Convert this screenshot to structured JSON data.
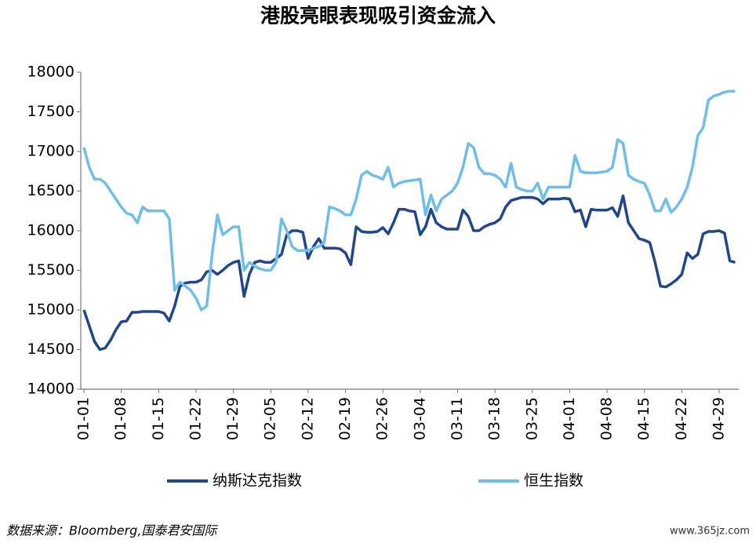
{
  "chart_data": {
    "type": "line",
    "title": "港股亮眼表现吸引资金流入",
    "source": "数据来源：Bloomberg,国泰君安国际",
    "watermark": "www.365jz.com",
    "categories": [
      "01-01",
      null,
      null,
      null,
      null,
      null,
      null,
      "01-08",
      null,
      null,
      null,
      null,
      null,
      null,
      "01-15",
      null,
      null,
      null,
      null,
      null,
      null,
      "01-22",
      null,
      null,
      null,
      null,
      null,
      null,
      "01-29",
      null,
      null,
      null,
      null,
      null,
      null,
      "02-05",
      null,
      null,
      null,
      null,
      null,
      null,
      "02-12",
      null,
      null,
      null,
      null,
      null,
      null,
      "02-19",
      null,
      null,
      null,
      null,
      null,
      null,
      "02-26",
      null,
      null,
      null,
      null,
      null,
      null,
      "03-04",
      null,
      null,
      null,
      null,
      null,
      null,
      "03-11",
      null,
      null,
      null,
      null,
      null,
      null,
      "03-18",
      null,
      null,
      null,
      null,
      null,
      null,
      "03-25",
      null,
      null,
      null,
      null,
      null,
      null,
      "04-01",
      null,
      null,
      null,
      null,
      null,
      null,
      "04-08",
      null,
      null,
      null,
      null,
      null,
      null,
      "04-15",
      null,
      null,
      null,
      null,
      null,
      null,
      "04-22",
      null,
      null,
      null,
      null,
      null,
      null,
      "04-29",
      null,
      null,
      null
    ],
    "series": [
      {
        "name": "纳斯达克指数",
        "color": "#22468c",
        "values": [
          15000,
          14800,
          14600,
          14500,
          14520,
          14620,
          14750,
          14850,
          14860,
          14970,
          14970,
          14980,
          14980,
          14980,
          14980,
          14960,
          14860,
          15050,
          15300,
          15340,
          15350,
          15350,
          15380,
          15480,
          15500,
          15450,
          15500,
          15560,
          15600,
          15620,
          15170,
          15450,
          15600,
          15620,
          15600,
          15600,
          15650,
          15700,
          15950,
          16000,
          16000,
          15980,
          15650,
          15800,
          15900,
          15780,
          15780,
          15780,
          15770,
          15720,
          15570,
          16050,
          15990,
          15980,
          15980,
          15990,
          16040,
          15960,
          16100,
          16270,
          16270,
          16250,
          16240,
          15950,
          16050,
          16270,
          16100,
          16050,
          16020,
          16020,
          16020,
          16260,
          16180,
          16000,
          16000,
          16050,
          16080,
          16100,
          16150,
          16300,
          16380,
          16400,
          16420,
          16420,
          16420,
          16400,
          16340,
          16400,
          16400,
          16400,
          16410,
          16400,
          16240,
          16260,
          16050,
          16270,
          16260,
          16260,
          16260,
          16290,
          16180,
          16440,
          16100,
          16000,
          15900,
          15880,
          15850,
          15600,
          15300,
          15290,
          15330,
          15380,
          15450,
          15720,
          15650,
          15700,
          15960,
          15990,
          15990,
          16000,
          15970,
          15620,
          15600
        ]
      },
      {
        "name": "恒生指数",
        "color": "#6dbfe9",
        "values": [
          17050,
          16800,
          16650,
          16650,
          16600,
          16500,
          16400,
          16300,
          16220,
          16200,
          16100,
          16300,
          16250,
          16250,
          16250,
          16250,
          16150,
          15250,
          15350,
          15300,
          15250,
          15150,
          15000,
          15050,
          15700,
          16200,
          15950,
          16000,
          16050,
          16050,
          15500,
          15600,
          15550,
          15520,
          15500,
          15500,
          15600,
          16150,
          16000,
          15800,
          15750,
          15750,
          15750,
          15780,
          15800,
          15850,
          16300,
          16280,
          16250,
          16200,
          16200,
          16400,
          16700,
          16750,
          16700,
          16680,
          16650,
          16800,
          16550,
          16600,
          16620,
          16630,
          16640,
          16650,
          16200,
          16450,
          16250,
          16400,
          16450,
          16500,
          16600,
          16800,
          17100,
          17050,
          16800,
          16720,
          16720,
          16700,
          16650,
          16550,
          16850,
          16550,
          16520,
          16500,
          16500,
          16600,
          16400,
          16550,
          16550,
          16550,
          16550,
          16550,
          16950,
          16750,
          16730,
          16730,
          16730,
          16740,
          16750,
          16800,
          17150,
          17100,
          16700,
          16650,
          16620,
          16600,
          16450,
          16250,
          16250,
          16400,
          16230,
          16300,
          16400,
          16550,
          16800,
          17200,
          17300,
          17650,
          17700,
          17720,
          17750,
          17760,
          17760
        ]
      }
    ],
    "ylim": [
      14000,
      18000
    ],
    "yticks": [
      14000,
      14500,
      15000,
      15500,
      16000,
      16500,
      17000,
      17500,
      18000
    ],
    "grid": false,
    "legend": "bottom"
  }
}
